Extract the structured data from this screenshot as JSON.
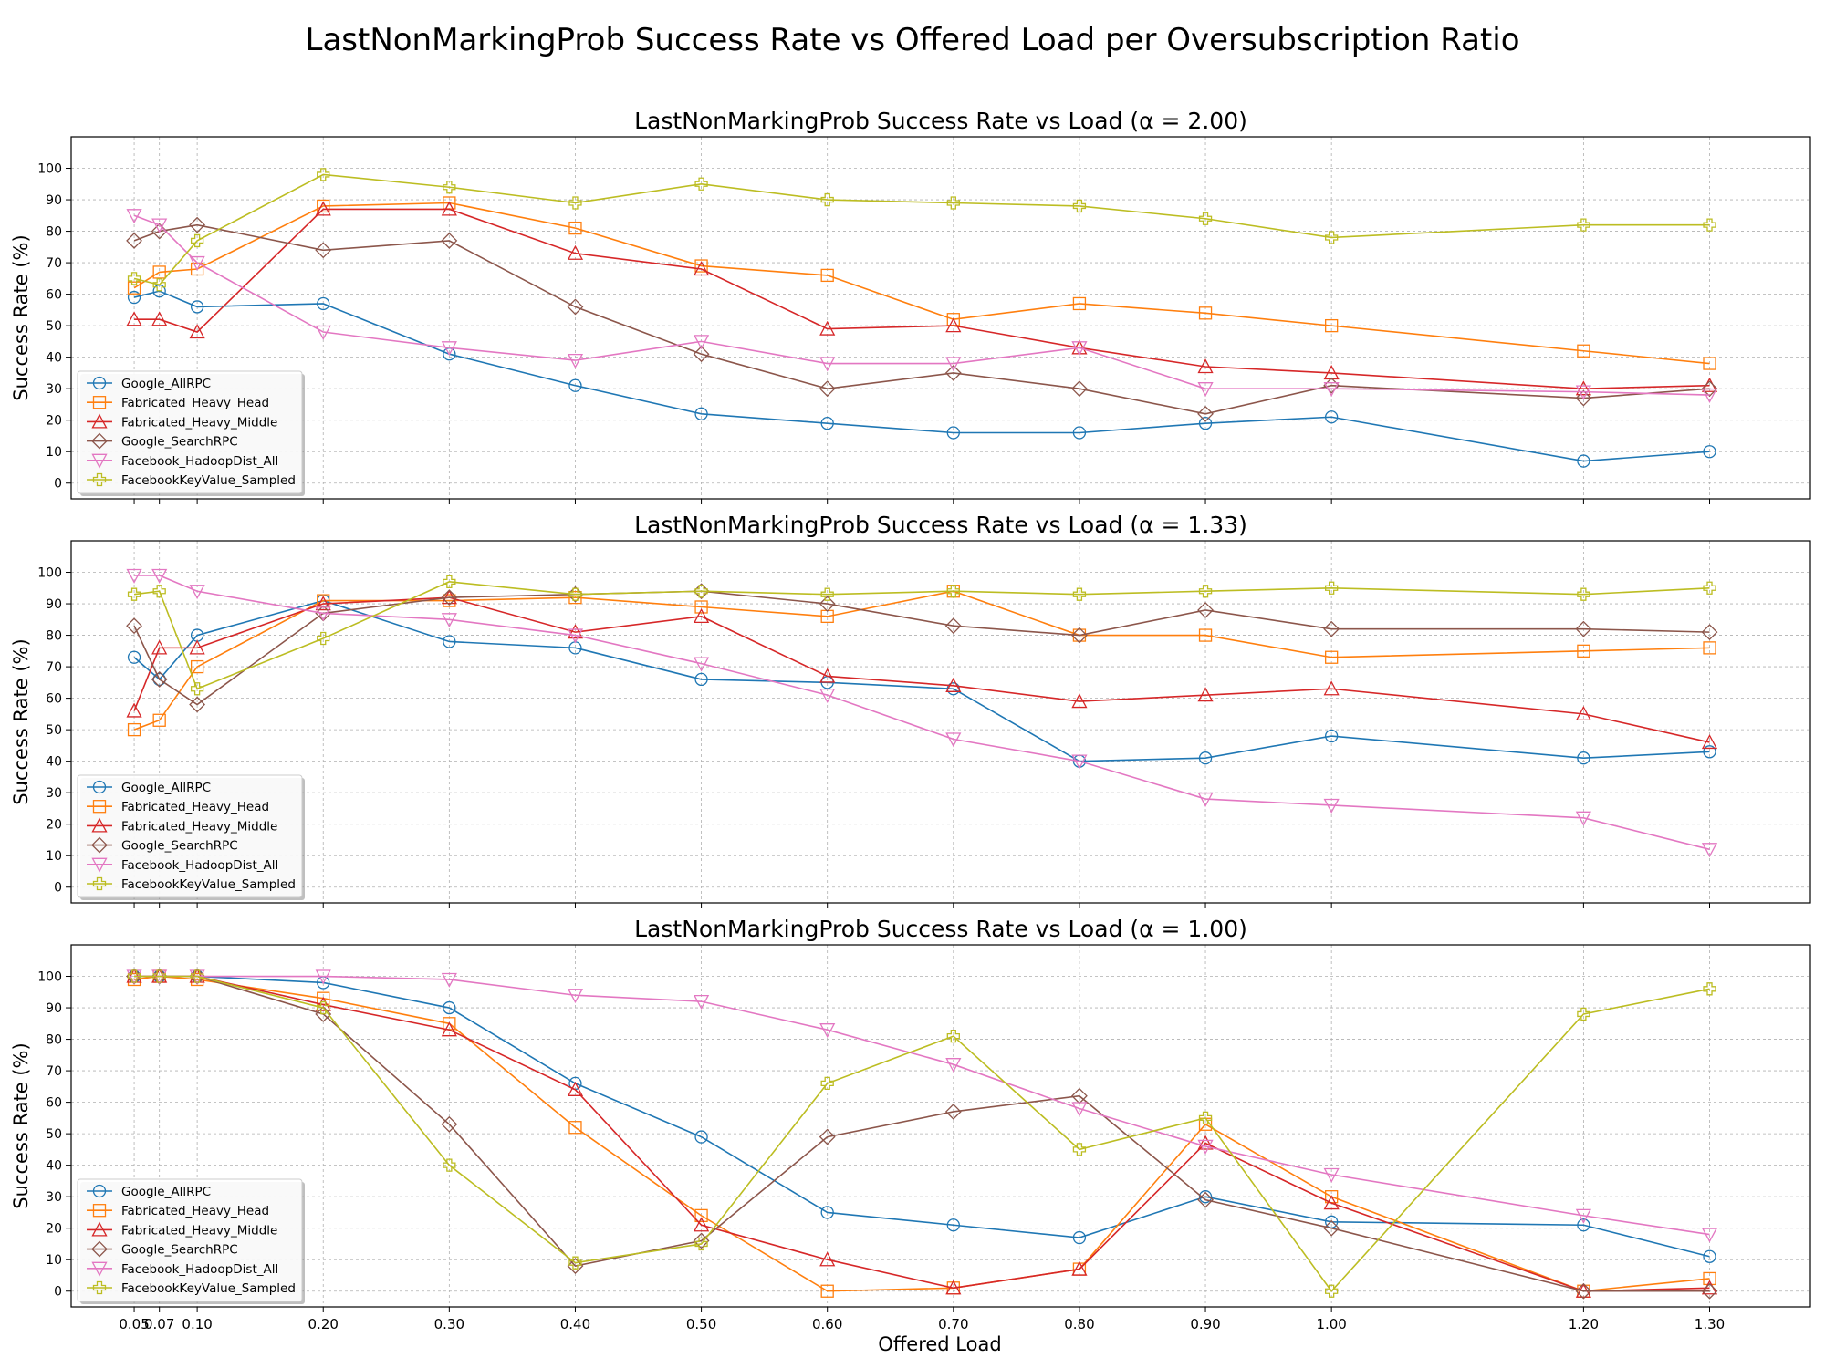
{
  "figure": {
    "title": "LastNonMarkingProb Success Rate vs Offered Load per Oversubscription Ratio",
    "xlabel": "Offered Load"
  },
  "chart_data": [
    {
      "type": "line",
      "title": "LastNonMarkingProb Success Rate vs Load (α = 2.00)",
      "xlabel": "",
      "ylabel": "Success Rate (%)",
      "ylim": [
        -5,
        110
      ],
      "grid": true,
      "legend_position": "lower-left",
      "x": [
        0.05,
        0.07,
        0.1,
        0.2,
        0.3,
        0.4,
        0.5,
        0.6,
        0.7,
        0.8,
        0.9,
        1.0,
        1.2,
        1.3
      ],
      "x_tick_labels": [
        "0.05",
        "0.07",
        "0.10",
        "0.20",
        "0.30",
        "0.40",
        "0.50",
        "0.60",
        "0.70",
        "0.80",
        "0.90",
        "1.00",
        "1.20",
        "1.30"
      ],
      "y_ticks": [
        0,
        10,
        20,
        30,
        40,
        50,
        60,
        70,
        80,
        90,
        100
      ],
      "series": [
        {
          "name": "Google_AllRPC",
          "color": "#1f77b4",
          "marker": "circle",
          "values": [
            59,
            61,
            56,
            57,
            41,
            31,
            22,
            19,
            16,
            16,
            19,
            21,
            7,
            10
          ]
        },
        {
          "name": "Fabricated_Heavy_Head",
          "color": "#ff7f0e",
          "marker": "square",
          "values": [
            62,
            67,
            68,
            88,
            89,
            81,
            69,
            66,
            52,
            57,
            54,
            50,
            42,
            38
          ]
        },
        {
          "name": "Fabricated_Heavy_Middle",
          "color": "#d62728",
          "marker": "triangle-up",
          "values": [
            52,
            52,
            48,
            87,
            87,
            73,
            68,
            49,
            50,
            43,
            37,
            35,
            30,
            31
          ]
        },
        {
          "name": "Google_SearchRPC",
          "color": "#8c564b",
          "marker": "diamond",
          "values": [
            77,
            80,
            82,
            74,
            77,
            56,
            41,
            30,
            35,
            30,
            22,
            31,
            27,
            30
          ]
        },
        {
          "name": "Facebook_HadoopDist_All",
          "color": "#e377c2",
          "marker": "triangle-down",
          "values": [
            85,
            82,
            70,
            48,
            43,
            39,
            45,
            38,
            38,
            43,
            30,
            30,
            29,
            28
          ]
        },
        {
          "name": "FacebookKeyValue_Sampled",
          "color": "#bcbd22",
          "marker": "plus",
          "values": [
            65,
            63,
            77,
            98,
            94,
            89,
            95,
            90,
            89,
            88,
            84,
            78,
            82,
            82
          ]
        }
      ]
    },
    {
      "type": "line",
      "title": "LastNonMarkingProb Success Rate vs Load (α = 1.33)",
      "xlabel": "",
      "ylabel": "Success Rate (%)",
      "ylim": [
        -5,
        110
      ],
      "grid": true,
      "legend_position": "lower-left",
      "x": [
        0.05,
        0.07,
        0.1,
        0.2,
        0.3,
        0.4,
        0.5,
        0.6,
        0.7,
        0.8,
        0.9,
        1.0,
        1.2,
        1.3
      ],
      "x_tick_labels": [
        "0.05",
        "0.07",
        "0.10",
        "0.20",
        "0.30",
        "0.40",
        "0.50",
        "0.60",
        "0.70",
        "0.80",
        "0.90",
        "1.00",
        "1.20",
        "1.30"
      ],
      "y_ticks": [
        0,
        10,
        20,
        30,
        40,
        50,
        60,
        70,
        80,
        90,
        100
      ],
      "series": [
        {
          "name": "Google_AllRPC",
          "color": "#1f77b4",
          "marker": "circle",
          "values": [
            73,
            66,
            80,
            91,
            78,
            76,
            66,
            65,
            63,
            40,
            41,
            48,
            41,
            43
          ]
        },
        {
          "name": "Fabricated_Heavy_Head",
          "color": "#ff7f0e",
          "marker": "square",
          "values": [
            50,
            53,
            70,
            91,
            91,
            92,
            89,
            86,
            94,
            80,
            80,
            73,
            75,
            76
          ]
        },
        {
          "name": "Fabricated_Heavy_Middle",
          "color": "#d62728",
          "marker": "triangle-up",
          "values": [
            56,
            76,
            76,
            90,
            92,
            81,
            86,
            67,
            64,
            59,
            61,
            63,
            55,
            46
          ]
        },
        {
          "name": "Google_SearchRPC",
          "color": "#8c564b",
          "marker": "diamond",
          "values": [
            83,
            66,
            58,
            87,
            92,
            93,
            94,
            90,
            83,
            80,
            88,
            82,
            82,
            81
          ]
        },
        {
          "name": "Facebook_HadoopDist_All",
          "color": "#e377c2",
          "marker": "triangle-down",
          "values": [
            99,
            99,
            94,
            87,
            85,
            80,
            71,
            61,
            47,
            40,
            28,
            26,
            22,
            12
          ]
        },
        {
          "name": "FacebookKeyValue_Sampled",
          "color": "#bcbd22",
          "marker": "plus",
          "values": [
            93,
            94,
            63,
            79,
            97,
            93,
            94,
            93,
            94,
            93,
            94,
            95,
            93,
            95
          ]
        }
      ]
    },
    {
      "type": "line",
      "title": "LastNonMarkingProb Success Rate vs Load (α = 1.00)",
      "xlabel": "Offered Load",
      "ylabel": "Success Rate (%)",
      "ylim": [
        -5,
        110
      ],
      "grid": true,
      "legend_position": "lower-left",
      "x": [
        0.05,
        0.07,
        0.1,
        0.2,
        0.3,
        0.4,
        0.5,
        0.6,
        0.7,
        0.8,
        0.9,
        1.0,
        1.2,
        1.3
      ],
      "x_tick_labels": [
        "0.05",
        "0.07",
        "0.10",
        "0.20",
        "0.30",
        "0.40",
        "0.50",
        "0.60",
        "0.70",
        "0.80",
        "0.90",
        "1.00",
        "1.20",
        "1.30"
      ],
      "y_ticks": [
        0,
        10,
        20,
        30,
        40,
        50,
        60,
        70,
        80,
        90,
        100
      ],
      "series": [
        {
          "name": "Google_AllRPC",
          "color": "#1f77b4",
          "marker": "circle",
          "values": [
            100,
            100,
            100,
            98,
            90,
            66,
            49,
            25,
            21,
            17,
            30,
            22,
            21,
            11
          ]
        },
        {
          "name": "Fabricated_Heavy_Head",
          "color": "#ff7f0e",
          "marker": "square",
          "values": [
            99,
            100,
            99,
            93,
            85,
            52,
            24,
            0,
            1,
            7,
            53,
            30,
            0,
            4
          ]
        },
        {
          "name": "Fabricated_Heavy_Middle",
          "color": "#d62728",
          "marker": "triangle-up",
          "values": [
            100,
            100,
            100,
            91,
            83,
            64,
            21,
            10,
            1,
            7,
            47,
            28,
            0,
            1
          ]
        },
        {
          "name": "Google_SearchRPC",
          "color": "#8c564b",
          "marker": "diamond",
          "values": [
            100,
            100,
            100,
            88,
            53,
            8,
            16,
            49,
            57,
            62,
            29,
            20,
            0,
            0
          ]
        },
        {
          "name": "Facebook_HadoopDist_All",
          "color": "#e377c2",
          "marker": "triangle-down",
          "values": [
            100,
            100,
            100,
            100,
            99,
            94,
            92,
            83,
            72,
            58,
            46,
            37,
            24,
            18
          ]
        },
        {
          "name": "FacebookKeyValue_Sampled",
          "color": "#bcbd22",
          "marker": "plus",
          "values": [
            100,
            100,
            100,
            90,
            40,
            9,
            15,
            66,
            81,
            45,
            55,
            0,
            88,
            96
          ]
        }
      ]
    }
  ]
}
